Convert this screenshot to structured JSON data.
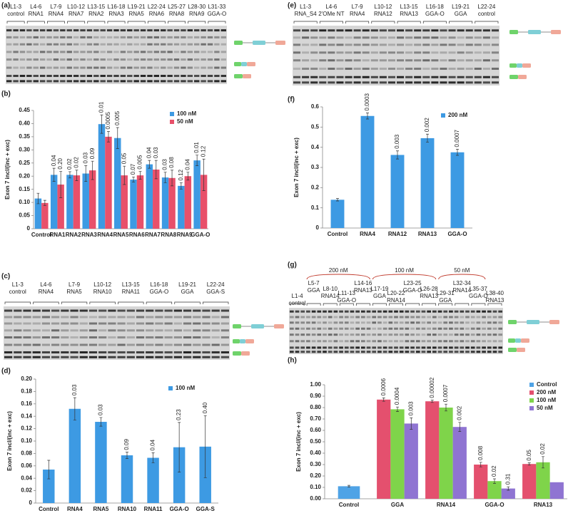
{
  "chart_data": [
    {
      "type": "bar",
      "panel": "(b)",
      "ylabel": "Exon 7 incl/(inc  + exc)",
      "categories": [
        "Control",
        "RNA1",
        "RNA2",
        "RNA3",
        "RNA4",
        "RNA5",
        "RNA6",
        "RNA7",
        "RNA8",
        "RNA9",
        "GGA-O"
      ],
      "series": [
        {
          "name": "100 nM",
          "color": "#3d9ae3",
          "values": [
            0.115,
            0.205,
            0.205,
            0.21,
            0.398,
            0.345,
            0.187,
            0.245,
            0.195,
            0.163,
            0.26
          ],
          "errors": [
            0.02,
            0.025,
            0.012,
            0.03,
            0.035,
            0.04,
            0.01,
            0.015,
            0.02,
            0.012,
            0.02
          ],
          "p_values": [
            null,
            "0.04",
            "0.02",
            "0.03",
            "0.01",
            "0.005",
            "0.07",
            "0.04",
            "0.03",
            "0.12",
            "0.01"
          ]
        },
        {
          "name": "50 nM",
          "color": "#e8506a",
          "values": [
            0.098,
            0.168,
            0.203,
            0.222,
            0.35,
            0.203,
            0.203,
            0.225,
            0.193,
            0.2,
            0.205
          ],
          "errors": [
            0.01,
            0.05,
            0.02,
            0.035,
            0.02,
            0.035,
            0.015,
            0.035,
            0.03,
            0.015,
            0.06
          ],
          "p_values": [
            null,
            "0.20",
            "0.02",
            "0.09",
            "0.0005",
            "0.05",
            "0.005",
            "0.03",
            "0.08",
            "0.04",
            "0.12"
          ]
        }
      ],
      "ylim": [
        0,
        0.45
      ],
      "yticks": [
        0,
        0.05,
        {
          "value": 0.1,
          "label": "0.10"
        },
        0.15,
        {
          "value": 0.2,
          "label": "0.20"
        },
        0.25,
        {
          "value": 0.3,
          "label": "0.30"
        },
        0.35,
        {
          "value": 0.4,
          "label": "0.40"
        },
        0.45
      ],
      "grid": false,
      "legend": "top-right"
    },
    {
      "type": "bar",
      "panel": "(d)",
      "ylabel": "Exon 7 incl/(inc + exc)",
      "categories": [
        "Control",
        "RNA4",
        "RNA5",
        "RNA10",
        "RNA11",
        "GGA-O",
        "GGA-S"
      ],
      "series": [
        {
          "name": "100 nM",
          "color": "#3d9ae3",
          "values": [
            0.054,
            0.152,
            0.131,
            0.077,
            0.073,
            0.09,
            0.091
          ],
          "errors": [
            0.015,
            0.018,
            0.007,
            0.005,
            0.008,
            0.04,
            0.05
          ],
          "p_values": [
            null,
            "0.03",
            "0.03",
            "0.09",
            "0.04",
            "0.23",
            "0.40"
          ]
        }
      ],
      "ylim": [
        0,
        0.2
      ],
      "yticks": [
        0,
        0.02,
        0.04,
        0.06,
        0.08,
        {
          "value": 0.1,
          "label": "0.10"
        },
        0.12,
        0.14,
        0.16,
        0.18,
        {
          "value": 0.2,
          "label": "0.20"
        }
      ],
      "grid": false,
      "legend": "top-right"
    },
    {
      "type": "bar",
      "panel": "(f)",
      "ylabel": "Exon 7 incl/(inc + exc)",
      "categories": [
        "Control",
        "RNA4",
        "RNA12",
        "RNA13",
        "GGA-O"
      ],
      "series": [
        {
          "name": "200 nM",
          "color": "#3d9ae3",
          "values": [
            0.14,
            0.555,
            0.362,
            0.445,
            0.375
          ],
          "errors": [
            0.006,
            0.015,
            0.02,
            0.02,
            0.015
          ],
          "p_values": [
            null,
            "0.0003",
            "0.003",
            "0.002",
            "0.0007"
          ]
        }
      ],
      "ylim": [
        0,
        0.6
      ],
      "yticks": [
        0,
        0.1,
        0.2,
        0.3,
        0.4,
        0.5,
        0.6
      ],
      "grid": false,
      "legend": "top-right"
    },
    {
      "type": "bar",
      "panel": "(h)",
      "ylabel": "Exon 7 incl/(inc + exc)",
      "categories": [
        "Control",
        "GGA",
        "RNA14",
        "GGA-O",
        "RNA13"
      ],
      "series": [
        {
          "name": "Control",
          "color": "#4fa3e6",
          "values": [
            0.11,
            null,
            null,
            null,
            null
          ],
          "errors": [
            0.008,
            null,
            null,
            null,
            null
          ],
          "p_values": [
            null,
            null,
            null,
            null,
            null
          ]
        },
        {
          "name": "200 nM",
          "color": "#e4506e",
          "values": [
            null,
            0.87,
            0.855,
            0.3,
            0.305
          ],
          "errors": [
            null,
            0.015,
            0.01,
            0.02,
            0.01
          ],
          "p_values": [
            null,
            "0.0006",
            "0.00002",
            "0.008",
            "0.05"
          ]
        },
        {
          "name": "100 nM",
          "color": "#7fd44a",
          "values": [
            null,
            0.785,
            0.8,
            0.155,
            0.32
          ],
          "errors": [
            null,
            0.02,
            0.03,
            0.02,
            0.05
          ],
          "p_values": [
            null,
            "0.0004",
            "0.0007",
            "0.02",
            "0.02"
          ]
        },
        {
          "name": "50 nM",
          "color": "#8f74d2",
          "values": [
            null,
            0.66,
            0.63,
            0.09,
            0.145
          ],
          "errors": [
            null,
            0.05,
            0.04,
            0.015,
            null
          ],
          "p_values": [
            null,
            "0.003",
            "0.002",
            "0.31",
            null
          ]
        }
      ],
      "ylim": [
        0,
        1.0
      ],
      "yticks": [
        {
          "value": 0,
          "label": "0.00"
        },
        {
          "value": 0.1,
          "label": "0.10"
        },
        {
          "value": 0.2,
          "label": "0.20"
        },
        {
          "value": 0.3,
          "label": "0.30"
        },
        {
          "value": 0.4,
          "label": "0.40"
        },
        {
          "value": 0.5,
          "label": "0.50"
        },
        {
          "value": 0.6,
          "label": "0.60"
        },
        {
          "value": 0.7,
          "label": "0.70"
        },
        {
          "value": 0.8,
          "label": "0.80"
        },
        {
          "value": 0.9,
          "label": "0.90"
        },
        {
          "value": 1.0,
          "label": "1.00"
        }
      ],
      "grid": false,
      "legend": "top-right"
    }
  ],
  "gels": [
    {
      "panel": "(a)",
      "lanes": [
        [
          "L1-3",
          "control"
        ],
        [
          "L4-6",
          "RNA1"
        ],
        [
          "L7-9",
          "RNA4"
        ],
        [
          "L10-12",
          "RNA7"
        ],
        [
          "L13-15",
          "RNA2"
        ],
        [
          "L16-18",
          "RNA3"
        ],
        [
          "L19-21",
          "RNA5"
        ],
        [
          "L22-24",
          "RNA6"
        ],
        [
          "L25-27",
          "RNA8"
        ],
        [
          "L28-30",
          "RNA9"
        ],
        [
          "L31-33",
          "GGA-O"
        ]
      ]
    },
    {
      "panel": "(c)",
      "lanes": [
        [
          "L1-3",
          "control"
        ],
        [
          "L4-6",
          "RNA4"
        ],
        [
          "L7-9",
          "RNA5"
        ],
        [
          "L10-12",
          "RNA10"
        ],
        [
          "L13-15",
          "RNA11"
        ],
        [
          "L16-18",
          "GGA-O"
        ],
        [
          "L19-21",
          "GGA"
        ],
        [
          "L22-24",
          "GGA-S"
        ]
      ]
    },
    {
      "panel": "(e)",
      "lanes": [
        [
          "L1-3",
          "RNA_S4"
        ],
        [
          "L4-6",
          "2'OMe NT"
        ],
        [
          "L7-9",
          "RNA4"
        ],
        [
          "L10-12",
          "RNA12"
        ],
        [
          "L13-15",
          "RNA13"
        ],
        [
          "L16-18",
          "GGA-O"
        ],
        [
          "L19-21",
          "GGA"
        ],
        [
          "L22-24",
          "control"
        ]
      ]
    },
    {
      "panel": "(g)",
      "groups": [
        "200 nM",
        "100 nM",
        "50 nM"
      ],
      "lanes": [
        [
          "L1-4",
          "control"
        ],
        [
          "L5-7",
          "GGA"
        ],
        [
          "L8-10",
          "RNA14"
        ],
        [
          "L11-13",
          "GGA-O"
        ],
        [
          "L14-16",
          "RNA13"
        ],
        [
          "L17-19",
          "GGA"
        ],
        [
          "L20-22",
          "RNA14"
        ],
        [
          "L23-25",
          "GGA-O"
        ],
        [
          "L26-28",
          "RNA13"
        ],
        [
          "L29-31",
          "GGA"
        ],
        [
          "L32-34",
          "RNA14"
        ],
        [
          "L35-37",
          "GGA-O"
        ],
        [
          "L38-40",
          "RNA13"
        ]
      ]
    }
  ]
}
